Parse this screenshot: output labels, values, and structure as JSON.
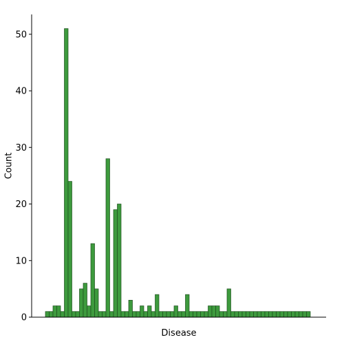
{
  "chart_data": {
    "type": "bar",
    "title": "",
    "xlabel": "Disease",
    "ylabel": "Count",
    "ylim": [
      0,
      53.5
    ],
    "yticks": [
      0,
      10,
      20,
      30,
      40,
      50
    ],
    "x_tick_labels_visible": false,
    "grid": false,
    "legend": "none",
    "bar_color": "#3d9a3d",
    "bar_edge_color": "#1f4f1f",
    "values": [
      1,
      1,
      2,
      2,
      1,
      51,
      24,
      1,
      1,
      5,
      6,
      2,
      13,
      5,
      1,
      1,
      28,
      1,
      19,
      20,
      1,
      1,
      3,
      1,
      1,
      2,
      1,
      2,
      1,
      4,
      1,
      1,
      1,
      1,
      2,
      1,
      1,
      4,
      1,
      1,
      1,
      1,
      1,
      2,
      2,
      2,
      1,
      1,
      5,
      1,
      1,
      1,
      1,
      1,
      1,
      1,
      1,
      1,
      1,
      1,
      1,
      1,
      1,
      1,
      1,
      1,
      1,
      1,
      1,
      1
    ]
  }
}
